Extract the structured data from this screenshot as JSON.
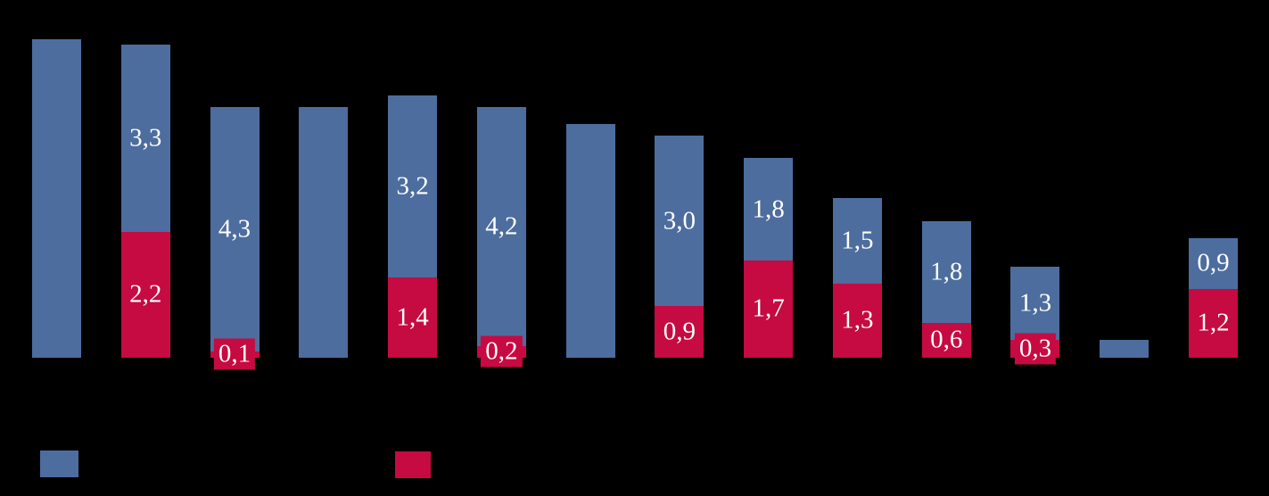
{
  "chart_data": {
    "type": "bar",
    "stacked": true,
    "orientation": "vertical",
    "title": "",
    "xlabel": "",
    "ylabel": "",
    "num_categories": 14,
    "categories": [
      "",
      "",
      "",
      "",
      "",
      "",
      "",
      "",
      "",
      "",
      "",
      "",
      "",
      ""
    ],
    "series": [
      {
        "name": "red-bottom-series",
        "color": "#C60A42",
        "values": [
          0,
          2.2,
          0.1,
          0,
          1.4,
          0.2,
          0,
          0.9,
          1.7,
          1.3,
          0.6,
          0.3,
          0,
          1.2
        ],
        "data_labels": [
          "",
          "2,2",
          "0,1",
          "",
          "1,4",
          "0,2",
          "",
          "0,9",
          "1,7",
          "1,3",
          "0,6",
          "0,3",
          "",
          "1,2"
        ]
      },
      {
        "name": "blue-top-series",
        "color": "#4D6D9E",
        "values": [
          5.6,
          3.3,
          4.3,
          4.4,
          3.2,
          4.2,
          4.1,
          3.0,
          1.8,
          1.5,
          1.8,
          1.3,
          0.3,
          0.9
        ],
        "data_labels": [
          "",
          "3,3",
          "4,3",
          "",
          "3,2",
          "4,2",
          "",
          "3,0",
          "1,8",
          "1,5",
          "1,8",
          "1,3",
          "",
          "0,9"
        ]
      }
    ],
    "value_format": "comma-decimal",
    "data_label_color": "#FFFFFF",
    "ylim": [
      0,
      6.3
    ],
    "grid": false,
    "axes_visible": false,
    "background_color": "#000000",
    "legend_position": "bottom-left"
  },
  "legend": {
    "items": [
      {
        "name": "blue-series",
        "color": "#4D6D9E",
        "label": ""
      },
      {
        "name": "red-series",
        "color": "#C60A42",
        "label": ""
      }
    ]
  }
}
